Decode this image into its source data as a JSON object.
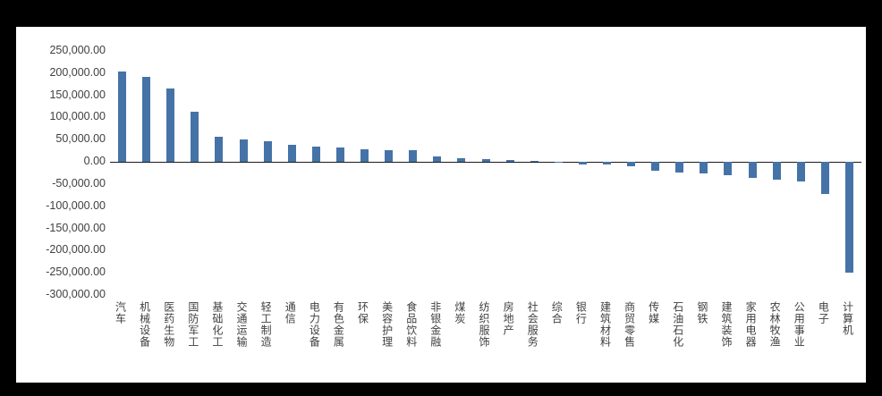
{
  "chart_data": {
    "type": "bar",
    "title": "",
    "xlabel": "",
    "ylabel": "",
    "categories": [
      "汽车",
      "机械设备",
      "医药生物",
      "国防军工",
      "基础化工",
      "交通运输",
      "轻工制造",
      "通信",
      "电力设备",
      "有色金属",
      "环保",
      "美容护理",
      "食品饮料",
      "非银金融",
      "煤炭",
      "纺织服饰",
      "房地产",
      "社会服务",
      "综合",
      "银行",
      "建筑材料",
      "商贸零售",
      "传媒",
      "石油石化",
      "钢铁",
      "建筑装饰",
      "家用电器",
      "农林牧渔",
      "公用事业",
      "电子",
      "计算机"
    ],
    "values": [
      203000,
      192000,
      166000,
      112000,
      57000,
      50000,
      46000,
      38000,
      35000,
      33000,
      29000,
      27000,
      26000,
      13000,
      8000,
      6000,
      5000,
      1500,
      -2000,
      -5000,
      -6000,
      -10000,
      -20000,
      -25000,
      -27000,
      -30000,
      -36000,
      -40000,
      -44000,
      -73000,
      -250000
    ],
    "ylim": [
      -300000,
      250000
    ],
    "ytick_step": 50000,
    "ytick_labels": [
      "250,000.00",
      "200,000.00",
      "150,000.00",
      "100,000.00",
      "50,000.00",
      "0.00",
      "-50,000.00",
      "-100,000.00",
      "-150,000.00",
      "-200,000.00",
      "-250,000.00",
      "-300,000.00"
    ],
    "grid": false,
    "legend": false,
    "bar_color": "#4573a7"
  },
  "colors": {
    "frame_background": "#000000",
    "chart_background": "#ffffff",
    "axis_text": "#3f3f3f",
    "zero_line": "#1a1a1a"
  }
}
